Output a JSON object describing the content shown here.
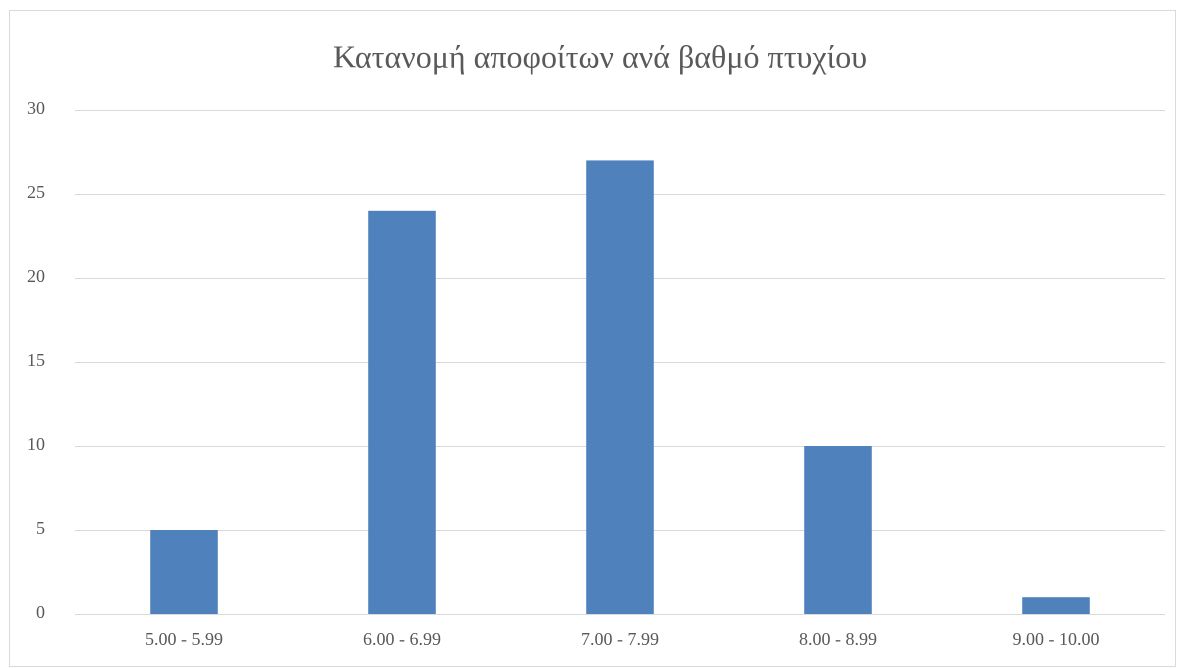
{
  "chart_data": {
    "type": "bar",
    "title": "Κατανομή αποφοίτων ανά βαθμό πτυχίου",
    "categories": [
      "5.00 - 5.99",
      "6.00 - 6.99",
      "7.00 - 7.99",
      "8.00 - 8.99",
      "9.00 - 10.00"
    ],
    "values": [
      5,
      24,
      27,
      10,
      1
    ],
    "color": "#4f81bd",
    "ylim": [
      0,
      30
    ],
    "yticks": [
      0,
      5,
      10,
      15,
      20,
      25,
      30
    ],
    "grid": true
  }
}
